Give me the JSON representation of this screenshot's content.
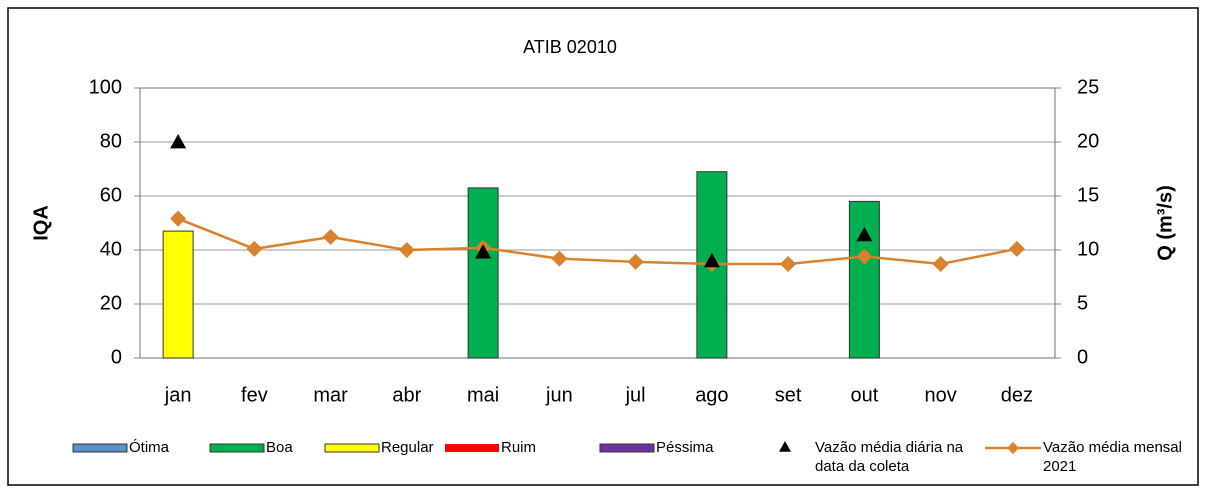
{
  "chart_data": {
    "type": "combo",
    "title": "ATIB 02010",
    "ylabel": "IQA",
    "y2label": "Q (m³/s)",
    "categories": [
      "jan",
      "fev",
      "mar",
      "abr",
      "mai",
      "jun",
      "jul",
      "ago",
      "set",
      "out",
      "nov",
      "dez"
    ],
    "ylim": [
      0,
      100
    ],
    "yticks": [
      0,
      20,
      40,
      60,
      80,
      100
    ],
    "y2lim": [
      0,
      25
    ],
    "y2ticks": [
      0,
      5,
      10,
      15,
      20,
      25
    ],
    "grid": true,
    "series": [
      {
        "name": "Ótima",
        "type": "bar",
        "color": "#5b8fc7",
        "values": [
          null,
          null,
          null,
          null,
          null,
          null,
          null,
          null,
          null,
          null,
          null,
          null
        ]
      },
      {
        "name": "Boa",
        "type": "bar",
        "color": "#00b050",
        "values": [
          null,
          null,
          null,
          null,
          63,
          null,
          null,
          69,
          null,
          58,
          null,
          null
        ]
      },
      {
        "name": "Regular",
        "type": "bar",
        "color": "#ffff00",
        "values": [
          47,
          null,
          null,
          null,
          null,
          null,
          null,
          null,
          null,
          null,
          null,
          null
        ]
      },
      {
        "name": "Ruim",
        "type": "bar",
        "color": "#ff0000",
        "values": [
          null,
          null,
          null,
          null,
          null,
          null,
          null,
          null,
          null,
          null,
          null,
          null
        ]
      },
      {
        "name": "Péssima",
        "type": "bar",
        "color": "#7030a0",
        "values": [
          null,
          null,
          null,
          null,
          null,
          null,
          null,
          null,
          null,
          null,
          null,
          null
        ]
      },
      {
        "name": "Vazão média diária na data da coleta",
        "type": "scatter",
        "axis": "y2",
        "color": "#000000",
        "values": [
          20,
          null,
          null,
          null,
          9.8,
          null,
          null,
          9,
          null,
          11.4,
          null,
          null
        ]
      },
      {
        "name": "Vazão média mensal 2021",
        "type": "line",
        "axis": "y2",
        "color": "#d9822b",
        "values": [
          12.9,
          10.1,
          11.2,
          10,
          10.2,
          9.2,
          8.9,
          8.7,
          8.7,
          9.4,
          8.7,
          10.1
        ]
      }
    ]
  }
}
